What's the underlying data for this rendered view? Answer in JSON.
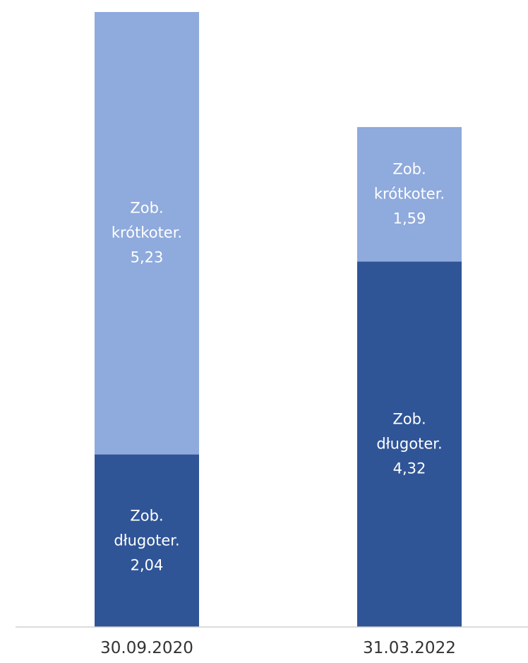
{
  "chart_data": {
    "type": "bar",
    "stacked": true,
    "categories": [
      "30.09.2020",
      "31.03.2022"
    ],
    "series": [
      {
        "name": "Zob. długoter.",
        "color": "#2f5597",
        "values": [
          2.04,
          4.32
        ],
        "value_labels": [
          "2,04",
          "4,32"
        ]
      },
      {
        "name": "Zob. krótkoter.",
        "color": "#8faadc",
        "values": [
          5.23,
          1.59
        ],
        "value_labels": [
          "5,23",
          "1,59"
        ]
      }
    ],
    "ylim": [
      0,
      7.27
    ]
  }
}
